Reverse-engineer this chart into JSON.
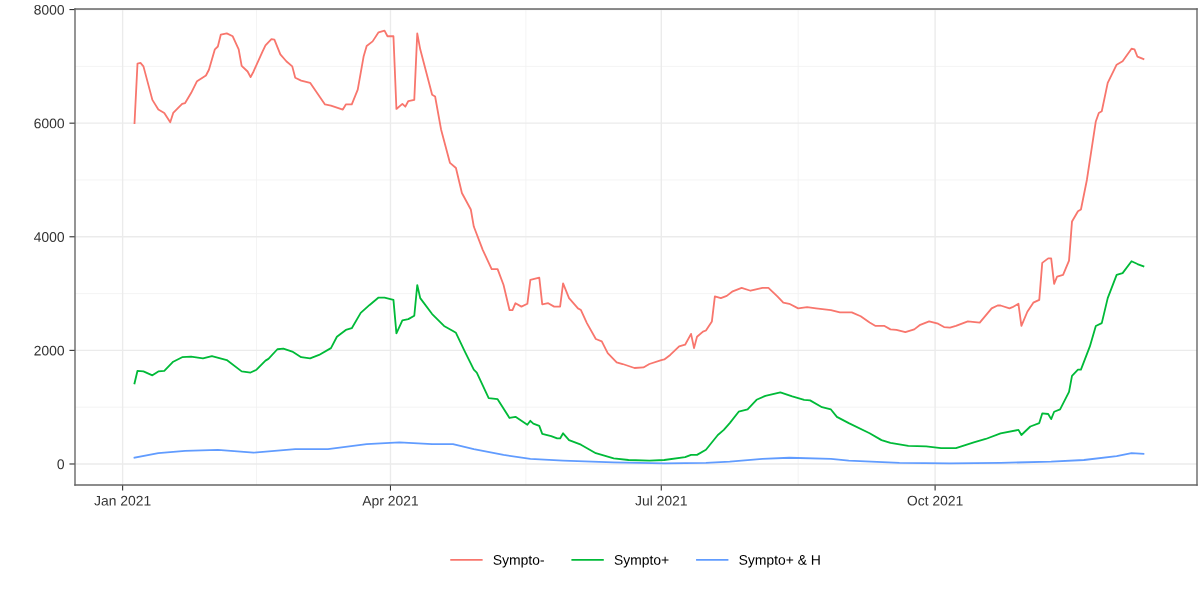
{
  "chart_data": {
    "type": "line",
    "legend": "bottom",
    "grid": true,
    "line_style": "solid",
    "marker": "none",
    "xlim": [
      "2020-12-16",
      "2021-12-28"
    ],
    "ylim": [
      -370,
      8010
    ],
    "xticks": [
      {
        "value": "2021-01-01",
        "label": "Jan 2021"
      },
      {
        "value": "2021-04-01",
        "label": "Apr 2021"
      },
      {
        "value": "2021-07-01",
        "label": "Jul 2021"
      },
      {
        "value": "2021-10-01",
        "label": "Oct 2021"
      }
    ],
    "yticks": [
      0,
      2000,
      4000,
      6000,
      8000
    ],
    "series": [
      {
        "name": "Sympto-",
        "color": "#f8766d",
        "x": [
          "2021-01-05",
          "2021-01-06",
          "2021-01-07",
          "2021-01-08",
          "2021-01-11",
          "2021-01-13",
          "2021-01-15",
          "2021-01-17",
          "2021-01-18",
          "2021-01-21",
          "2021-01-22",
          "2021-01-24",
          "2021-01-26",
          "2021-01-29",
          "2021-01-30",
          "2021-02-01",
          "2021-02-02",
          "2021-02-03",
          "2021-02-05",
          "2021-02-07",
          "2021-02-09",
          "2021-02-10",
          "2021-02-12",
          "2021-02-13",
          "2021-02-14",
          "2021-02-17",
          "2021-02-18",
          "2021-02-20",
          "2021-02-21",
          "2021-02-23",
          "2021-02-25",
          "2021-02-27",
          "2021-02-28",
          "2021-03-02",
          "2021-03-05",
          "2021-03-10",
          "2021-03-12",
          "2021-03-16",
          "2021-03-17",
          "2021-03-19",
          "2021-03-21",
          "2021-03-23",
          "2021-03-24",
          "2021-03-26",
          "2021-03-28",
          "2021-03-30",
          "2021-03-31",
          "2021-04-02",
          "2021-04-03",
          "2021-04-05",
          "2021-04-06",
          "2021-04-07",
          "2021-04-09",
          "2021-04-10",
          "2021-04-11",
          "2021-04-15",
          "2021-04-16",
          "2021-04-18",
          "2021-04-21",
          "2021-04-23",
          "2021-04-25",
          "2021-04-28",
          "2021-04-29",
          "2021-05-02",
          "2021-05-05",
          "2021-05-07",
          "2021-05-09",
          "2021-05-11",
          "2021-05-12",
          "2021-05-13",
          "2021-05-15",
          "2021-05-17",
          "2021-05-18",
          "2021-05-21",
          "2021-05-22",
          "2021-05-24",
          "2021-05-26",
          "2021-05-28",
          "2021-05-29",
          "2021-05-31",
          "2021-06-03",
          "2021-06-04",
          "2021-06-06",
          "2021-06-09",
          "2021-06-11",
          "2021-06-13",
          "2021-06-16",
          "2021-06-18",
          "2021-06-22",
          "2021-06-25",
          "2021-06-27",
          "2021-07-01",
          "2021-07-02",
          "2021-07-04",
          "2021-07-07",
          "2021-07-09",
          "2021-07-11",
          "2021-07-12",
          "2021-07-13",
          "2021-07-15",
          "2021-07-16",
          "2021-07-18",
          "2021-07-19",
          "2021-07-21",
          "2021-07-23",
          "2021-07-25",
          "2021-07-28",
          "2021-07-31",
          "2021-08-04",
          "2021-08-06",
          "2021-08-09",
          "2021-08-11",
          "2021-08-13",
          "2021-08-16",
          "2021-08-19",
          "2021-08-22",
          "2021-08-27",
          "2021-08-30",
          "2021-09-03",
          "2021-09-06",
          "2021-09-09",
          "2021-09-11",
          "2021-09-14",
          "2021-09-16",
          "2021-09-18",
          "2021-09-21",
          "2021-09-24",
          "2021-09-26",
          "2021-09-29",
          "2021-10-02",
          "2021-10-04",
          "2021-10-06",
          "2021-10-08",
          "2021-10-12",
          "2021-10-16",
          "2021-10-20",
          "2021-10-22",
          "2021-10-23",
          "2021-10-26",
          "2021-10-27",
          "2021-10-29",
          "2021-10-30",
          "2021-11-01",
          "2021-11-03",
          "2021-11-05",
          "2021-11-06",
          "2021-11-08",
          "2021-11-09",
          "2021-11-10",
          "2021-11-11",
          "2021-11-13",
          "2021-11-15",
          "2021-11-16",
          "2021-11-18",
          "2021-11-19",
          "2021-11-21",
          "2021-11-24",
          "2021-11-25",
          "2021-11-26",
          "2021-11-28",
          "2021-12-01",
          "2021-12-03",
          "2021-12-06",
          "2021-12-07",
          "2021-12-08",
          "2021-12-10"
        ],
        "values": [
          6000,
          7050,
          7060,
          7000,
          6410,
          6240,
          6180,
          6015,
          6180,
          6340,
          6355,
          6530,
          6740,
          6840,
          6940,
          7300,
          7350,
          7560,
          7580,
          7530,
          7300,
          7010,
          6910,
          6810,
          6910,
          7260,
          7370,
          7480,
          7470,
          7210,
          7090,
          7000,
          6800,
          6750,
          6710,
          6330,
          6310,
          6240,
          6330,
          6330,
          6590,
          7180,
          7360,
          7440,
          7600,
          7630,
          7530,
          7530,
          6250,
          6340,
          6290,
          6390,
          6410,
          7580,
          7300,
          6500,
          6470,
          5890,
          5300,
          5210,
          4770,
          4480,
          4180,
          3770,
          3430,
          3430,
          3150,
          2710,
          2710,
          2830,
          2770,
          2820,
          3240,
          3280,
          2810,
          2830,
          2770,
          2770,
          3180,
          2920,
          2740,
          2710,
          2480,
          2200,
          2160,
          1950,
          1790,
          1760,
          1690,
          1700,
          1760,
          1830,
          1840,
          1920,
          2070,
          2100,
          2290,
          2040,
          2240,
          2330,
          2350,
          2510,
          2950,
          2920,
          2960,
          3040,
          3100,
          3050,
          3100,
          3100,
          2950,
          2840,
          2820,
          2740,
          2760,
          2740,
          2710,
          2670,
          2670,
          2600,
          2490,
          2430,
          2430,
          2370,
          2360,
          2320,
          2370,
          2450,
          2510,
          2470,
          2410,
          2400,
          2430,
          2510,
          2490,
          2740,
          2790,
          2790,
          2740,
          2760,
          2820,
          2430,
          2680,
          2840,
          2890,
          3540,
          3620,
          3620,
          3170,
          3300,
          3330,
          3580,
          4270,
          4450,
          4480,
          5000,
          6030,
          6180,
          6210,
          6710,
          7030,
          7090,
          7310,
          7300,
          7170,
          7130
        ]
      },
      {
        "name": "Sympto+",
        "color": "#00ba38",
        "x": [
          "2021-01-05",
          "2021-01-06",
          "2021-01-08",
          "2021-01-11",
          "2021-01-13",
          "2021-01-15",
          "2021-01-18",
          "2021-01-21",
          "2021-01-24",
          "2021-01-28",
          "2021-01-31",
          "2021-02-05",
          "2021-02-10",
          "2021-02-13",
          "2021-02-15",
          "2021-02-18",
          "2021-02-19",
          "2021-02-22",
          "2021-02-24",
          "2021-02-27",
          "2021-03-02",
          "2021-03-05",
          "2021-03-08",
          "2021-03-12",
          "2021-03-14",
          "2021-03-17",
          "2021-03-19",
          "2021-03-22",
          "2021-03-25",
          "2021-03-28",
          "2021-03-30",
          "2021-04-02",
          "2021-04-03",
          "2021-04-05",
          "2021-04-07",
          "2021-04-09",
          "2021-04-10",
          "2021-04-11",
          "2021-04-15",
          "2021-04-19",
          "2021-04-22",
          "2021-04-23",
          "2021-04-26",
          "2021-04-29",
          "2021-04-30",
          "2021-05-04",
          "2021-05-07",
          "2021-05-11",
          "2021-05-13",
          "2021-05-17",
          "2021-05-18",
          "2021-05-19",
          "2021-05-21",
          "2021-05-22",
          "2021-05-25",
          "2021-05-27",
          "2021-05-28",
          "2021-05-29",
          "2021-05-31",
          "2021-06-04",
          "2021-06-09",
          "2021-06-15",
          "2021-06-20",
          "2021-06-27",
          "2021-07-02",
          "2021-07-09",
          "2021-07-11",
          "2021-07-13",
          "2021-07-16",
          "2021-07-20",
          "2021-07-22",
          "2021-07-24",
          "2021-07-27",
          "2021-07-30",
          "2021-08-02",
          "2021-08-05",
          "2021-08-10",
          "2021-08-14",
          "2021-08-18",
          "2021-08-20",
          "2021-08-24",
          "2021-08-27",
          "2021-08-29",
          "2021-09-02",
          "2021-09-09",
          "2021-09-13",
          "2021-09-16",
          "2021-09-22",
          "2021-09-28",
          "2021-10-03",
          "2021-10-08",
          "2021-10-14",
          "2021-10-18",
          "2021-10-23",
          "2021-10-29",
          "2021-10-30",
          "2021-11-02",
          "2021-11-05",
          "2021-11-06",
          "2021-11-08",
          "2021-11-09",
          "2021-11-10",
          "2021-11-12",
          "2021-11-15",
          "2021-11-16",
          "2021-11-18",
          "2021-11-19",
          "2021-11-22",
          "2021-11-24",
          "2021-11-26",
          "2021-11-28",
          "2021-12-01",
          "2021-12-03",
          "2021-12-06",
          "2021-12-08",
          "2021-12-10"
        ],
        "values": [
          1420,
          1640,
          1630,
          1560,
          1630,
          1640,
          1800,
          1880,
          1890,
          1860,
          1900,
          1830,
          1630,
          1610,
          1660,
          1820,
          1850,
          2020,
          2030,
          1980,
          1880,
          1860,
          1920,
          2040,
          2240,
          2360,
          2390,
          2660,
          2800,
          2930,
          2930,
          2890,
          2300,
          2530,
          2550,
          2610,
          3150,
          2920,
          2640,
          2430,
          2340,
          2310,
          1980,
          1660,
          1610,
          1160,
          1140,
          810,
          830,
          690,
          760,
          710,
          670,
          530,
          490,
          450,
          450,
          540,
          420,
          340,
          190,
          100,
          70,
          60,
          70,
          120,
          160,
          160,
          250,
          510,
          600,
          720,
          920,
          960,
          1130,
          1200,
          1260,
          1190,
          1130,
          1120,
          1000,
          960,
          830,
          720,
          540,
          420,
          370,
          320,
          310,
          280,
          280,
          380,
          440,
          540,
          600,
          510,
          660,
          720,
          890,
          880,
          790,
          920,
          960,
          1270,
          1550,
          1660,
          1660,
          2070,
          2430,
          2480,
          2920,
          3330,
          3360,
          3570,
          3520,
          3480
        ]
      },
      {
        "name": "Sympto+ & H",
        "color": "#619cff",
        "x": [
          "2021-01-05",
          "2021-01-13",
          "2021-01-22",
          "2021-02-02",
          "2021-02-14",
          "2021-02-28",
          "2021-03-11",
          "2021-03-24",
          "2021-04-04",
          "2021-04-15",
          "2021-04-22",
          "2021-04-29",
          "2021-05-09",
          "2021-05-18",
          "2021-05-29",
          "2021-06-15",
          "2021-07-02",
          "2021-07-16",
          "2021-07-24",
          "2021-08-04",
          "2021-08-13",
          "2021-08-27",
          "2021-09-02",
          "2021-09-19",
          "2021-10-06",
          "2021-10-23",
          "2021-11-09",
          "2021-11-20",
          "2021-12-01",
          "2021-12-06",
          "2021-12-10"
        ],
        "values": [
          110,
          190,
          230,
          250,
          200,
          260,
          260,
          350,
          380,
          350,
          350,
          260,
          160,
          90,
          60,
          30,
          10,
          20,
          40,
          90,
          110,
          90,
          60,
          20,
          10,
          20,
          40,
          70,
          140,
          190,
          180
        ]
      }
    ]
  }
}
